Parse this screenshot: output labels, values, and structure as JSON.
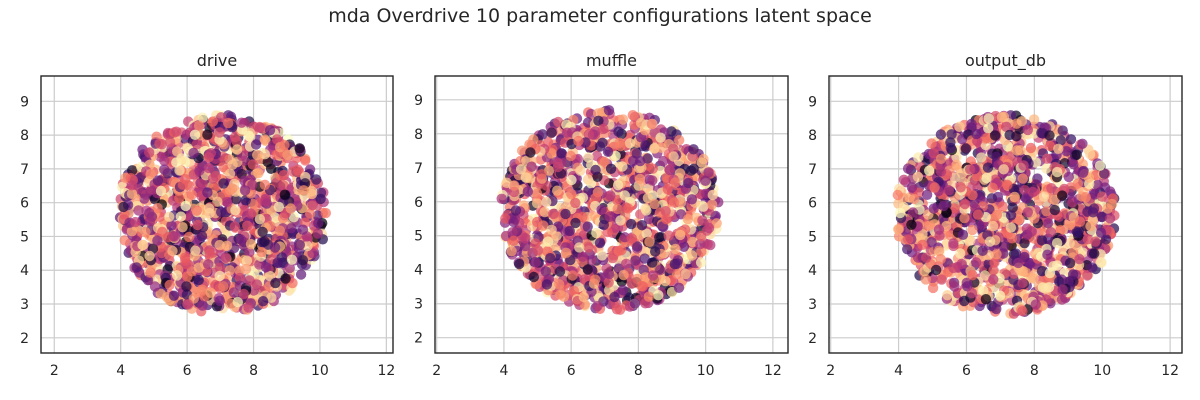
{
  "figure": {
    "title": "mda Overdrive 10 parameter configurations latent space"
  },
  "colormap": [
    "#000004",
    "#2c115f",
    "#721f81",
    "#b73779",
    "#f1605d",
    "#feb078",
    "#fcfdbf"
  ],
  "chart_data": [
    {
      "type": "scatter",
      "title": "drive",
      "xlim": [
        1.6,
        12.2
      ],
      "ylim": [
        1.55,
        9.75
      ],
      "xticks": [
        2,
        4,
        6,
        8,
        10,
        12
      ],
      "yticks": [
        2,
        3,
        4,
        5,
        6,
        7,
        8,
        9
      ],
      "grid": true,
      "cloud": {
        "center": [
          7.05,
          5.65
        ],
        "radius_x": 3.15,
        "radius_y": 2.95
      },
      "extremes": {
        "x_min": 3.85,
        "x_max": 10.3,
        "y_min": 2.45,
        "y_max": 8.7
      },
      "color": "value mapped to magma colormap"
    },
    {
      "type": "scatter",
      "title": "muffle",
      "xlim": [
        1.95,
        12.45
      ],
      "ylim": [
        1.55,
        9.7
      ],
      "xticks": [
        2,
        4,
        6,
        8,
        10,
        12
      ],
      "yticks": [
        2,
        3,
        4,
        5,
        6,
        7,
        8,
        9
      ],
      "grid": true,
      "cloud": {
        "center": [
          7.15,
          5.75
        ],
        "radius_x": 3.25,
        "radius_y": 2.95
      },
      "extremes": {
        "x_min": 3.8,
        "x_max": 10.5,
        "y_min": 2.5,
        "y_max": 8.9
      },
      "color": "value mapped to magma colormap"
    },
    {
      "type": "scatter",
      "title": "output_db",
      "xlim": [
        1.95,
        12.35
      ],
      "ylim": [
        1.55,
        9.75
      ],
      "xticks": [
        2,
        4,
        6,
        8,
        10,
        12
      ],
      "yticks": [
        2,
        3,
        4,
        5,
        6,
        7,
        8,
        9
      ],
      "grid": true,
      "cloud": {
        "center": [
          7.15,
          5.65
        ],
        "radius_x": 3.25,
        "radius_y": 2.95
      },
      "extremes": {
        "x_min": 3.85,
        "x_max": 10.4,
        "y_min": 2.5,
        "y_max": 8.85
      },
      "color": "value mapped to magma colormap"
    }
  ]
}
